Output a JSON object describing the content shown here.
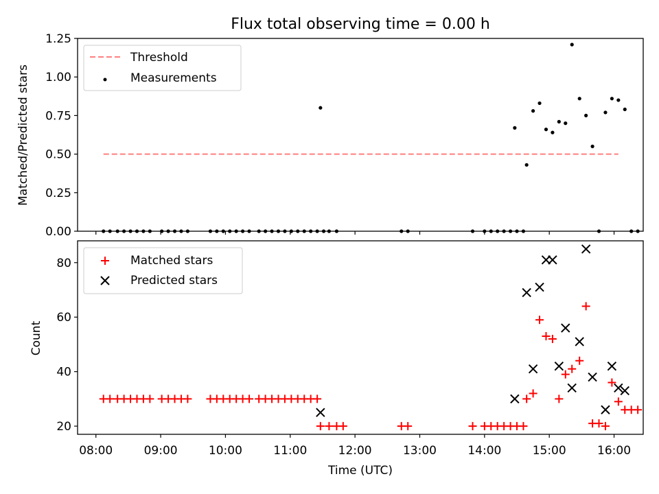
{
  "chart_data": [
    {
      "type": "scatter",
      "title": "Flux total observing time = 0.00 h",
      "ylabel": "Matched/Predicted stars",
      "xlabel": "",
      "xlim": [
        "07:43",
        "16:27"
      ],
      "ylim": [
        0,
        1.25
      ],
      "yticks": [
        0.0,
        0.25,
        0.5,
        0.75,
        1.0,
        1.25
      ],
      "ytick_labels": [
        "0.00",
        "0.25",
        "0.50",
        "0.75",
        "1.00",
        "1.25"
      ],
      "xticks": [
        "08:00",
        "09:00",
        "10:00",
        "11:00",
        "12:00",
        "13:00",
        "14:00",
        "15:00",
        "16:00"
      ],
      "legend": {
        "position": "top-left",
        "entries": [
          "Threshold",
          "Measurements"
        ]
      },
      "threshold": {
        "name": "Threshold",
        "y": 0.5,
        "x": [
          "08:07",
          "16:04"
        ],
        "color": "#ff7f7f"
      },
      "series": [
        {
          "name": "Measurements",
          "color": "#000000",
          "points": [
            [
              "08:07",
              0
            ],
            [
              "08:13",
              0
            ],
            [
              "08:20",
              0
            ],
            [
              "08:26",
              0
            ],
            [
              "08:32",
              0
            ],
            [
              "08:38",
              0
            ],
            [
              "08:44",
              0
            ],
            [
              "08:50",
              0
            ],
            [
              "09:01",
              0
            ],
            [
              "09:07",
              0
            ],
            [
              "09:13",
              0
            ],
            [
              "09:19",
              0
            ],
            [
              "09:25",
              0
            ],
            [
              "09:46",
              0
            ],
            [
              "09:52",
              0
            ],
            [
              "09:58",
              0
            ],
            [
              "10:04",
              0
            ],
            [
              "10:10",
              0
            ],
            [
              "10:16",
              0
            ],
            [
              "10:22",
              0
            ],
            [
              "10:31",
              0
            ],
            [
              "10:37",
              0
            ],
            [
              "10:43",
              0
            ],
            [
              "10:49",
              0
            ],
            [
              "10:55",
              0
            ],
            [
              "11:01",
              0
            ],
            [
              "11:07",
              0
            ],
            [
              "11:13",
              0
            ],
            [
              "11:19",
              0
            ],
            [
              "11:25",
              0
            ],
            [
              "11:31",
              0
            ],
            [
              "11:28",
              0.8
            ],
            [
              "11:36",
              0
            ],
            [
              "11:43",
              0
            ],
            [
              "12:43",
              0
            ],
            [
              "12:49",
              0
            ],
            [
              "13:49",
              0
            ],
            [
              "14:00",
              0
            ],
            [
              "14:06",
              0
            ],
            [
              "14:12",
              0
            ],
            [
              "14:18",
              0
            ],
            [
              "14:24",
              0
            ],
            [
              "14:30",
              0
            ],
            [
              "14:36",
              0
            ],
            [
              "14:28",
              0.67
            ],
            [
              "14:39",
              0.43
            ],
            [
              "14:45",
              0.78
            ],
            [
              "14:51",
              0.83
            ],
            [
              "14:57",
              0.66
            ],
            [
              "15:03",
              0.64
            ],
            [
              "15:09",
              0.71
            ],
            [
              "15:15",
              0.7
            ],
            [
              "15:21",
              1.21
            ],
            [
              "15:28",
              0.86
            ],
            [
              "15:34",
              0.75
            ],
            [
              "15:40",
              0.55
            ],
            [
              "15:46",
              0
            ],
            [
              "15:52",
              0.77
            ],
            [
              "15:58",
              0.86
            ],
            [
              "16:04",
              0.85
            ],
            [
              "16:10",
              0.79
            ],
            [
              "16:16",
              0
            ],
            [
              "16:22",
              0
            ]
          ]
        }
      ]
    },
    {
      "type": "scatter",
      "ylabel": "Count",
      "xlabel": "Time (UTC)",
      "xlim": [
        "07:43",
        "16:27"
      ],
      "ylim": [
        17,
        88
      ],
      "yticks": [
        20,
        40,
        60,
        80
      ],
      "ytick_labels": [
        "20",
        "40",
        "60",
        "80"
      ],
      "xticks": [
        "08:00",
        "09:00",
        "10:00",
        "11:00",
        "12:00",
        "13:00",
        "14:00",
        "15:00",
        "16:00"
      ],
      "xtick_labels": [
        "08:00",
        "09:00",
        "10:00",
        "11:00",
        "12:00",
        "13:00",
        "14:00",
        "15:00",
        "16:00"
      ],
      "legend": {
        "position": "top-left",
        "entries": [
          "Matched stars",
          "Predicted stars"
        ]
      },
      "series": [
        {
          "name": "Matched stars",
          "marker": "plus",
          "color": "#ff0000",
          "points": [
            [
              "08:07",
              30
            ],
            [
              "08:13",
              30
            ],
            [
              "08:20",
              30
            ],
            [
              "08:26",
              30
            ],
            [
              "08:32",
              30
            ],
            [
              "08:38",
              30
            ],
            [
              "08:44",
              30
            ],
            [
              "08:50",
              30
            ],
            [
              "09:01",
              30
            ],
            [
              "09:07",
              30
            ],
            [
              "09:13",
              30
            ],
            [
              "09:19",
              30
            ],
            [
              "09:25",
              30
            ],
            [
              "09:46",
              30
            ],
            [
              "09:52",
              30
            ],
            [
              "09:58",
              30
            ],
            [
              "10:04",
              30
            ],
            [
              "10:10",
              30
            ],
            [
              "10:16",
              30
            ],
            [
              "10:22",
              30
            ],
            [
              "10:31",
              30
            ],
            [
              "10:37",
              30
            ],
            [
              "10:43",
              30
            ],
            [
              "10:49",
              30
            ],
            [
              "10:55",
              30
            ],
            [
              "11:01",
              30
            ],
            [
              "11:07",
              30
            ],
            [
              "11:13",
              30
            ],
            [
              "11:19",
              30
            ],
            [
              "11:25",
              30
            ],
            [
              "11:28",
              20
            ],
            [
              "11:36",
              20
            ],
            [
              "11:43",
              20
            ],
            [
              "11:49",
              20
            ],
            [
              "12:43",
              20
            ],
            [
              "12:49",
              20
            ],
            [
              "13:49",
              20
            ],
            [
              "14:00",
              20
            ],
            [
              "14:06",
              20
            ],
            [
              "14:12",
              20
            ],
            [
              "14:18",
              20
            ],
            [
              "14:24",
              20
            ],
            [
              "14:30",
              20
            ],
            [
              "14:36",
              20
            ],
            [
              "14:39",
              30
            ],
            [
              "14:45",
              32
            ],
            [
              "14:51",
              59
            ],
            [
              "14:57",
              53
            ],
            [
              "15:03",
              52
            ],
            [
              "15:09",
              30
            ],
            [
              "15:15",
              39
            ],
            [
              "15:21",
              41
            ],
            [
              "15:28",
              44
            ],
            [
              "15:34",
              64
            ],
            [
              "15:40",
              21
            ],
            [
              "15:46",
              21
            ],
            [
              "15:52",
              20
            ],
            [
              "15:58",
              36
            ],
            [
              "16:04",
              29
            ],
            [
              "16:10",
              26
            ],
            [
              "16:16",
              26
            ],
            [
              "16:22",
              26
            ]
          ]
        },
        {
          "name": "Predicted stars",
          "marker": "x",
          "color": "#000000",
          "points": [
            [
              "11:28",
              25
            ],
            [
              "14:28",
              30
            ],
            [
              "14:39",
              69
            ],
            [
              "14:45",
              41
            ],
            [
              "14:51",
              71
            ],
            [
              "14:57",
              81
            ],
            [
              "15:03",
              81
            ],
            [
              "15:09",
              42
            ],
            [
              "15:15",
              56
            ],
            [
              "15:21",
              34
            ],
            [
              "15:28",
              51
            ],
            [
              "15:34",
              85
            ],
            [
              "15:40",
              38
            ],
            [
              "15:52",
              26
            ],
            [
              "15:58",
              42
            ],
            [
              "16:04",
              34
            ],
            [
              "16:10",
              33
            ]
          ]
        }
      ]
    }
  ]
}
